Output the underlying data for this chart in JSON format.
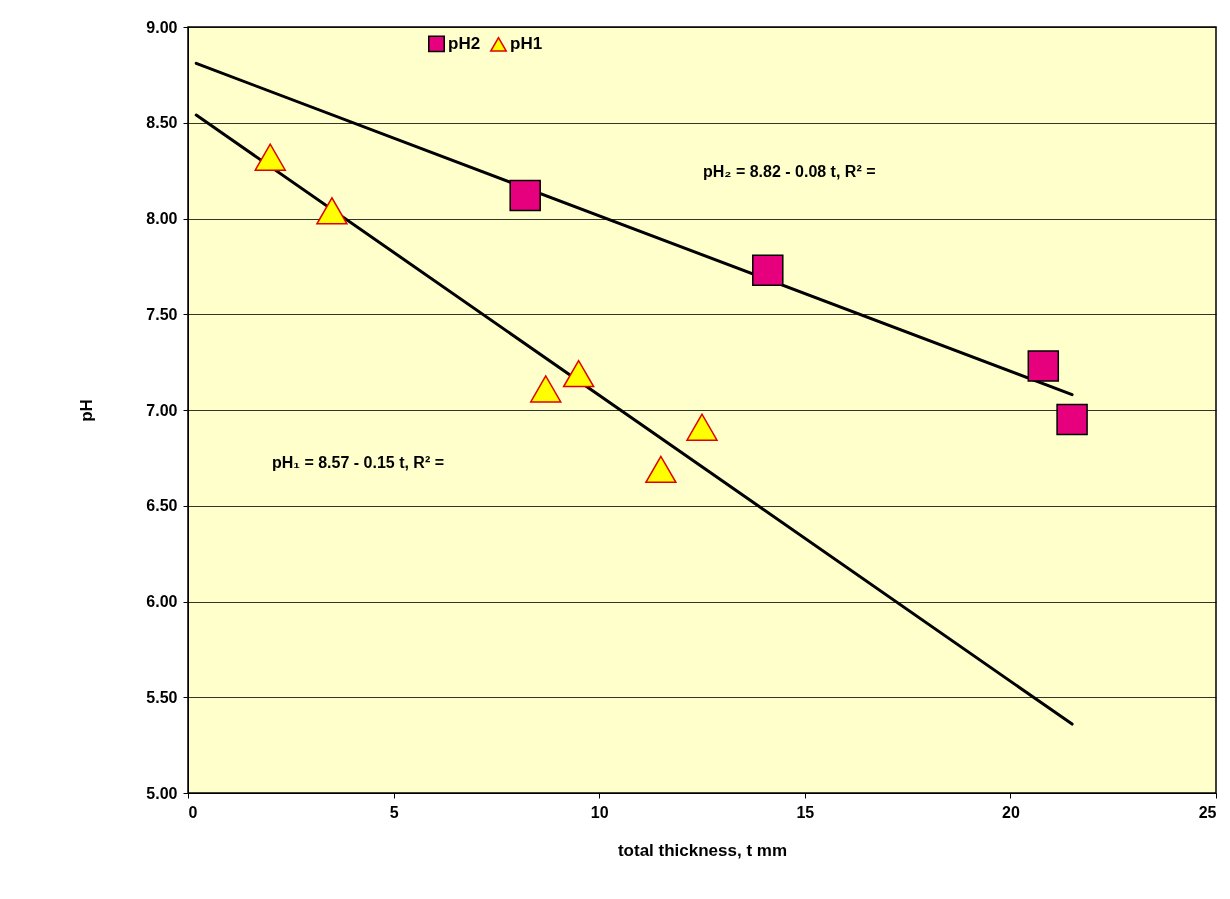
{
  "chart_data": {
    "type": "scatter",
    "xlabel": "total thickness, t mm",
    "ylabel": "pH",
    "xlim": [
      0,
      25
    ],
    "xticks": [
      0,
      5,
      10,
      15,
      20,
      25
    ],
    "ylim": [
      5,
      9
    ],
    "yticks": [
      {
        "value": 5,
        "label": "5.00"
      },
      {
        "value": 5.5,
        "label": "5.50"
      },
      {
        "value": 6,
        "label": "6.00"
      },
      {
        "value": 6.5,
        "label": "6.50"
      },
      {
        "value": 7,
        "label": "7.00"
      },
      {
        "value": 7.5,
        "label": "7.50"
      },
      {
        "value": 8,
        "label": "8.00"
      },
      {
        "value": 8.5,
        "label": "8.50"
      },
      {
        "value": 9,
        "label": "9.00"
      }
    ],
    "grid": "y",
    "legend": "top left",
    "series": [
      {
        "name": "pH2",
        "marker": "square",
        "color": "#e6007e",
        "x": [
          8.2,
          14.1,
          20.8,
          21.5
        ],
        "values": [
          8.12,
          7.73,
          7.23,
          6.95
        ]
      },
      {
        "name": "pH1",
        "marker": "triangle",
        "color": "#ffff00",
        "x": [
          2.0,
          3.5,
          8.7,
          9.5,
          11.5,
          12.5
        ],
        "values": [
          8.32,
          8.04,
          7.11,
          7.19,
          6.69,
          6.91
        ]
      },
      {
        "type": "line",
        "color": "#000000",
        "x": [
          0.2,
          21.5
        ],
        "values": [
          8.81,
          7.08
        ]
      },
      {
        "type": "line",
        "color": "#000000",
        "x": [
          0.2,
          21.5
        ],
        "values": [
          8.54,
          5.36
        ]
      }
    ],
    "annotations": [
      "pH₂ = 8.82 - 0.08 t, R² =",
      "pH₁ = 8.57 - 0.15 t, R² ="
    ]
  }
}
